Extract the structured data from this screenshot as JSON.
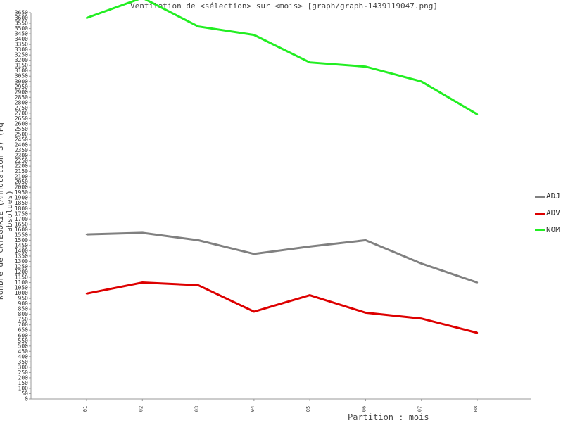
{
  "title": "Ventilation de <sélection> sur <mois> [graph/graph-1439119047.png]",
  "chart_data": {
    "type": "line",
    "title": "Ventilation de <sélection> sur <mois> [graph/graph-1439119047.png]",
    "xlabel": "Partition : mois",
    "ylabel": "Nombre de CATEGORIE (Annotation 3) (Fq absolues)",
    "categories": [
      "01",
      "02",
      "03",
      "04",
      "05",
      "06",
      "07",
      "08"
    ],
    "ylim": [
      0,
      3650
    ],
    "ytick_step": 50,
    "grid": false,
    "legend_position": "right",
    "series": [
      {
        "name": "ADJ",
        "color": "#808080",
        "values": [
          1555,
          1570,
          1500,
          1370,
          1440,
          1500,
          1280,
          1100
        ]
      },
      {
        "name": "ADV",
        "color": "#dd0000",
        "values": [
          995,
          1100,
          1075,
          825,
          980,
          815,
          760,
          625
        ]
      },
      {
        "name": "NOM",
        "color": "#22ee22",
        "values": [
          3600,
          3790,
          3520,
          3440,
          3180,
          3140,
          3000,
          2690
        ]
      }
    ]
  }
}
